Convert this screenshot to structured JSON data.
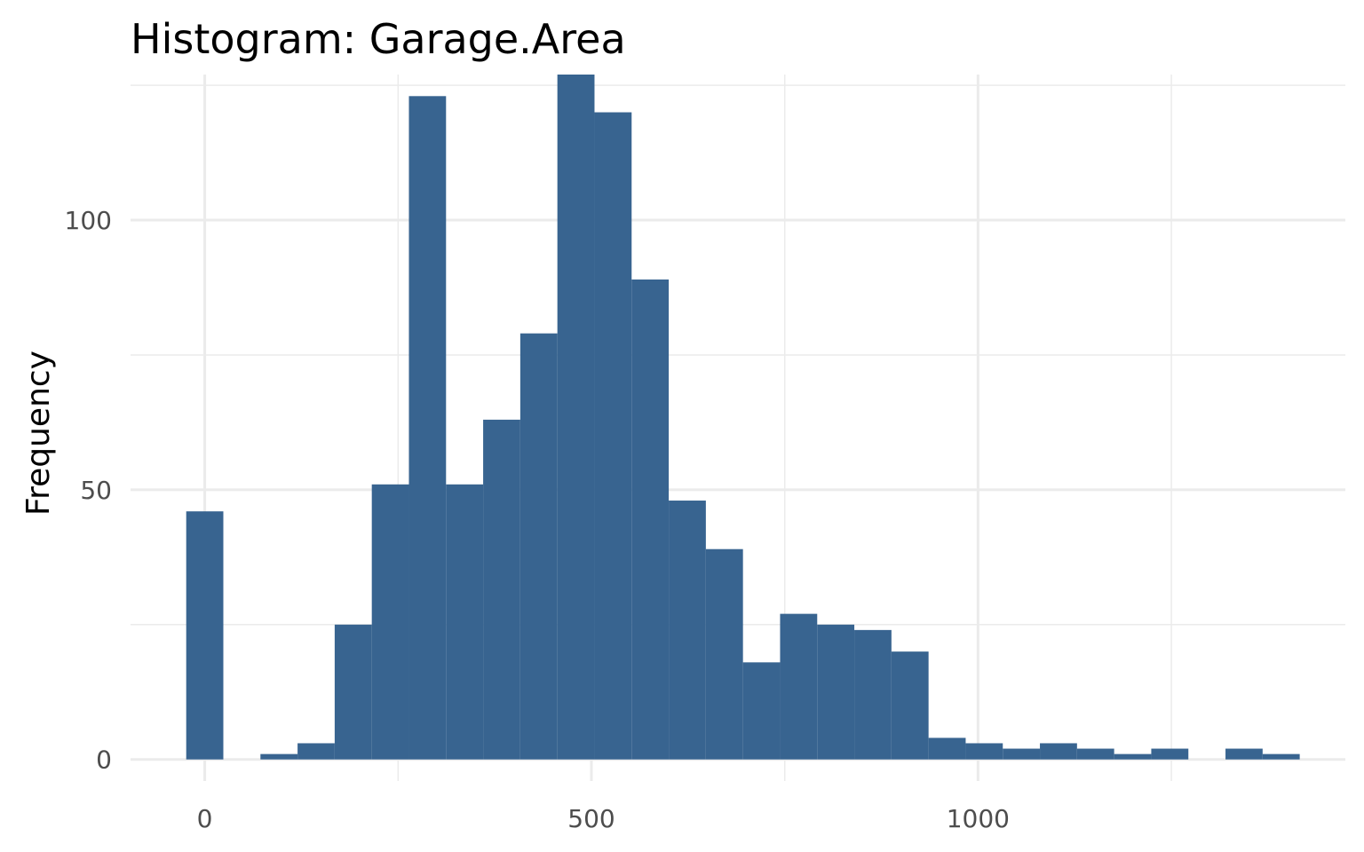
{
  "chart_data": {
    "type": "bar",
    "title": "Histogram:  Garage.Area",
    "xlabel": "",
    "ylabel": "Frequency",
    "bar_color": "#386490",
    "grid": true,
    "xlim": [
      -96,
      1475
    ],
    "ylim": [
      -4,
      127
    ],
    "x_ticks": [
      0,
      500,
      1000
    ],
    "x_tick_labels": [
      "0",
      "500",
      "1000"
    ],
    "y_ticks": [
      0,
      50,
      100
    ],
    "y_tick_labels": [
      "0",
      "50",
      "100"
    ],
    "bin_width": 48,
    "bins": [
      {
        "x0": -24,
        "x1": 24,
        "count": 46
      },
      {
        "x0": 72,
        "x1": 120,
        "count": 1
      },
      {
        "x0": 120,
        "x1": 168,
        "count": 3
      },
      {
        "x0": 168,
        "x1": 216,
        "count": 25
      },
      {
        "x0": 216,
        "x1": 264,
        "count": 51
      },
      {
        "x0": 264,
        "x1": 312,
        "count": 123
      },
      {
        "x0": 312,
        "x1": 360,
        "count": 51
      },
      {
        "x0": 360,
        "x1": 408,
        "count": 63
      },
      {
        "x0": 408,
        "x1": 456,
        "count": 79
      },
      {
        "x0": 456,
        "x1": 504,
        "count": 127
      },
      {
        "x0": 504,
        "x1": 552,
        "count": 120
      },
      {
        "x0": 552,
        "x1": 600,
        "count": 89
      },
      {
        "x0": 600,
        "x1": 648,
        "count": 48
      },
      {
        "x0": 648,
        "x1": 696,
        "count": 39
      },
      {
        "x0": 696,
        "x1": 744,
        "count": 18
      },
      {
        "x0": 744,
        "x1": 792,
        "count": 27
      },
      {
        "x0": 792,
        "x1": 840,
        "count": 25
      },
      {
        "x0": 840,
        "x1": 888,
        "count": 24
      },
      {
        "x0": 888,
        "x1": 936,
        "count": 20
      },
      {
        "x0": 936,
        "x1": 984,
        "count": 4
      },
      {
        "x0": 984,
        "x1": 1032,
        "count": 3
      },
      {
        "x0": 1032,
        "x1": 1080,
        "count": 2
      },
      {
        "x0": 1080,
        "x1": 1128,
        "count": 3
      },
      {
        "x0": 1128,
        "x1": 1176,
        "count": 2
      },
      {
        "x0": 1176,
        "x1": 1224,
        "count": 1
      },
      {
        "x0": 1224,
        "x1": 1272,
        "count": 2
      },
      {
        "x0": 1320,
        "x1": 1368,
        "count": 2
      },
      {
        "x0": 1368,
        "x1": 1416,
        "count": 1
      }
    ]
  }
}
